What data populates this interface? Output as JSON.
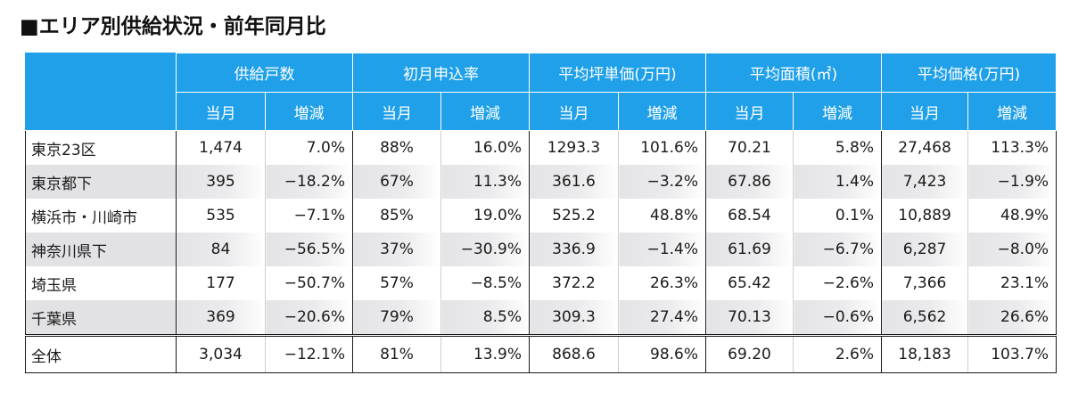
{
  "title": "■エリア別供給状況・前年同月比",
  "header": {
    "groups": [
      "供給戸数",
      "初月申込率",
      "平均坪単価(万円)",
      "平均面積(㎡)",
      "平均価格(万円)"
    ],
    "sub": [
      "当月",
      "増減"
    ]
  },
  "rows": [
    {
      "region": "東京23区",
      "values": [
        "1,474",
        "7.0%",
        "88%",
        "16.0%",
        "1293.3",
        "101.6%",
        "70.21",
        "5.8%",
        "27,468",
        "113.3%"
      ]
    },
    {
      "region": "東京都下",
      "values": [
        "395",
        "−18.2%",
        "67%",
        "11.3%",
        "361.6",
        "−3.2%",
        "67.86",
        "1.4%",
        "7,423",
        "−1.9%"
      ]
    },
    {
      "region": "横浜市・川崎市",
      "values": [
        "535",
        "−7.1%",
        "85%",
        "19.0%",
        "525.2",
        "48.8%",
        "68.54",
        "0.1%",
        "10,889",
        "48.9%"
      ]
    },
    {
      "region": "神奈川県下",
      "values": [
        "84",
        "−56.5%",
        "37%",
        "−30.9%",
        "336.9",
        "−1.4%",
        "61.69",
        "−6.7%",
        "6,287",
        "−8.0%"
      ]
    },
    {
      "region": "埼玉県",
      "values": [
        "177",
        "−50.7%",
        "57%",
        "−8.5%",
        "372.2",
        "26.3%",
        "65.42",
        "−2.6%",
        "7,366",
        "23.1%"
      ]
    },
    {
      "region": "千葉県",
      "values": [
        "369",
        "−20.6%",
        "79%",
        "8.5%",
        "309.3",
        "27.4%",
        "70.13",
        "−0.6%",
        "6,562",
        "26.6%"
      ]
    }
  ],
  "total": {
    "region": "全体",
    "values": [
      "3,034",
      "−12.1%",
      "81%",
      "13.9%",
      "868.6",
      "98.6%",
      "69.20",
      "2.6%",
      "18,183",
      "103.7%"
    ]
  }
}
